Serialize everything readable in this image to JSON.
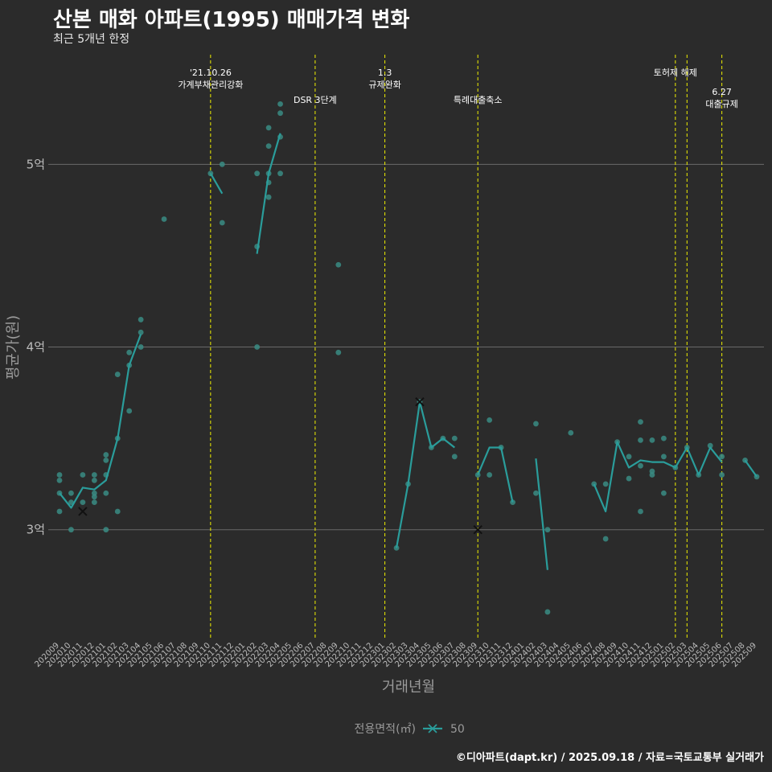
{
  "header": {
    "title": "산본 매화 아파트(1995) 매매가격 변화",
    "subtitle": "최근 5개년 한정"
  },
  "footer": {
    "caption": "©디아파트(dapt.kr) / 2025.09.18 / 자료=국토교통부 실거래가"
  },
  "colors": {
    "background": "#2b2b2b",
    "series": "#2a9d9b",
    "points": "#3a8c84",
    "grid": "#6a6a6a",
    "event_line": "#f0f000",
    "text": "#ffffff",
    "axis_text": "#bbbbbb"
  },
  "chart_data": {
    "type": "line",
    "title": "산본 매화 아파트(1995) 매매가격 변화",
    "xlabel": "거래년월",
    "ylabel": "평균가(원)",
    "ylim": [
      2.4,
      5.6
    ],
    "yticks": [
      3,
      4,
      5
    ],
    "ytick_labels": [
      "3억",
      "4억",
      "5억"
    ],
    "categories": [
      "202009",
      "202010",
      "202011",
      "202012",
      "202101",
      "202102",
      "202103",
      "202104",
      "202105",
      "202106",
      "202107",
      "202108",
      "202109",
      "202110",
      "202111",
      "202112",
      "202201",
      "202202",
      "202203",
      "202204",
      "202205",
      "202206",
      "202207",
      "202208",
      "202209",
      "202210",
      "202211",
      "202212",
      "202301",
      "202302",
      "202303",
      "202304",
      "202305",
      "202306",
      "202307",
      "202308",
      "202309",
      "202310",
      "202311",
      "202312",
      "202401",
      "202402",
      "202403",
      "202404",
      "202405",
      "202406",
      "202407",
      "202408",
      "202409",
      "202410",
      "202411",
      "202412",
      "202501",
      "202502",
      "202503",
      "202504",
      "202505",
      "202506",
      "202507",
      "202508",
      "202509"
    ],
    "legend": {
      "title": "전용면적(㎡)",
      "entries": [
        "50"
      ]
    },
    "series": [
      {
        "name": "50",
        "segments": [
          [
            [
              0,
              3.2
            ],
            [
              1,
              3.12
            ],
            [
              2,
              3.23
            ],
            [
              3,
              3.22
            ],
            [
              4,
              3.27
            ],
            [
              5,
              3.5
            ],
            [
              6,
              3.9
            ],
            [
              7,
              4.07
            ]
          ],
          [
            [
              13,
              4.95
            ],
            [
              14,
              4.84
            ]
          ],
          [
            [
              17,
              4.51
            ],
            [
              18,
              4.95
            ],
            [
              19,
              5.17
            ]
          ],
          [
            [
              29,
              2.9
            ],
            [
              30,
              3.25
            ],
            [
              31,
              3.7
            ],
            [
              32,
              3.45
            ],
            [
              33,
              3.5
            ],
            [
              34,
              3.45
            ]
          ],
          [
            [
              36,
              3.3
            ],
            [
              37,
              3.45
            ],
            [
              38,
              3.45
            ],
            [
              39,
              3.15
            ]
          ],
          [
            [
              41,
              3.39
            ],
            [
              42,
              2.78
            ]
          ],
          [
            [
              46,
              3.25
            ],
            [
              47,
              3.1
            ],
            [
              48,
              3.48
            ],
            [
              49,
              3.34
            ],
            [
              50,
              3.38
            ],
            [
              51,
              3.37
            ],
            [
              52,
              3.37
            ],
            [
              53,
              3.34
            ],
            [
              54,
              3.45
            ],
            [
              55,
              3.3
            ],
            [
              56,
              3.45
            ],
            [
              57,
              3.37
            ]
          ],
          [
            [
              59,
              3.38
            ],
            [
              60,
              3.29
            ]
          ]
        ]
      }
    ],
    "points": [
      [
        0,
        3.1
      ],
      [
        0,
        3.2
      ],
      [
        0,
        3.27
      ],
      [
        0,
        3.3
      ],
      [
        1,
        3.0
      ],
      [
        1,
        3.15
      ],
      [
        1,
        3.2
      ],
      [
        2,
        3.15
      ],
      [
        2,
        3.3
      ],
      [
        3,
        3.15
      ],
      [
        3,
        3.18
      ],
      [
        3,
        3.2
      ],
      [
        3,
        3.27
      ],
      [
        3,
        3.3
      ],
      [
        4,
        3.0
      ],
      [
        4,
        3.2
      ],
      [
        4,
        3.3
      ],
      [
        4,
        3.38
      ],
      [
        4,
        3.41
      ],
      [
        5,
        3.1
      ],
      [
        5,
        3.5
      ],
      [
        5,
        3.85
      ],
      [
        6,
        3.65
      ],
      [
        6,
        3.9
      ],
      [
        6,
        3.97
      ],
      [
        7,
        4.0
      ],
      [
        7,
        4.08
      ],
      [
        7,
        4.15
      ],
      [
        9,
        4.7
      ],
      [
        13,
        4.95
      ],
      [
        14,
        5.0
      ],
      [
        14,
        4.68
      ],
      [
        17,
        4.0
      ],
      [
        17,
        4.55
      ],
      [
        17,
        4.95
      ],
      [
        18,
        4.82
      ],
      [
        18,
        4.9
      ],
      [
        18,
        4.95
      ],
      [
        18,
        5.1
      ],
      [
        18,
        5.2
      ],
      [
        19,
        4.95
      ],
      [
        19,
        5.15
      ],
      [
        19,
        5.28
      ],
      [
        19,
        5.33
      ],
      [
        24,
        4.45
      ],
      [
        24,
        3.97
      ],
      [
        29,
        2.9
      ],
      [
        30,
        3.25
      ],
      [
        31,
        3.7
      ],
      [
        32,
        3.45
      ],
      [
        33,
        3.5
      ],
      [
        34,
        3.4
      ],
      [
        34,
        3.5
      ],
      [
        36,
        3.3
      ],
      [
        37,
        3.3
      ],
      [
        37,
        3.6
      ],
      [
        38,
        3.45
      ],
      [
        39,
        3.15
      ],
      [
        41,
        3.2
      ],
      [
        41,
        3.58
      ],
      [
        42,
        3.0
      ],
      [
        42,
        2.55
      ],
      [
        44,
        3.53
      ],
      [
        46,
        3.25
      ],
      [
        47,
        2.95
      ],
      [
        47,
        3.25
      ],
      [
        48,
        3.48
      ],
      [
        49,
        3.28
      ],
      [
        49,
        3.4
      ],
      [
        50,
        3.1
      ],
      [
        50,
        3.35
      ],
      [
        50,
        3.49
      ],
      [
        50,
        3.59
      ],
      [
        51,
        3.3
      ],
      [
        51,
        3.32
      ],
      [
        51,
        3.49
      ],
      [
        52,
        3.2
      ],
      [
        52,
        3.4
      ],
      [
        52,
        3.5
      ],
      [
        53,
        3.34
      ],
      [
        54,
        3.45
      ],
      [
        55,
        3.3
      ],
      [
        56,
        3.46
      ],
      [
        57,
        3.3
      ],
      [
        57,
        3.4
      ],
      [
        59,
        3.38
      ],
      [
        60,
        3.29
      ]
    ],
    "cross_markers": [
      [
        2,
        3.1
      ],
      [
        31,
        3.7
      ],
      [
        36,
        3.0
      ]
    ],
    "events": [
      {
        "x": 13,
        "label_lines": [
          "'21.10.26",
          "가계부채관리강화"
        ],
        "level": 1
      },
      {
        "x": 22,
        "label_lines": [
          "DSR 3단계"
        ],
        "level": 2
      },
      {
        "x": 28,
        "label_lines": [
          "1.3",
          "규제완화"
        ],
        "level": 1
      },
      {
        "x": 36,
        "label_lines": [
          "특례대출축소"
        ],
        "level": 2
      },
      {
        "x": 53,
        "label_lines": [
          "토허제 해제"
        ],
        "level": 1
      },
      {
        "x": 54,
        "label_lines": [],
        "level": 1
      },
      {
        "x": 57,
        "label_lines": [
          "6.27",
          "대출규제"
        ],
        "level": 3
      }
    ]
  }
}
